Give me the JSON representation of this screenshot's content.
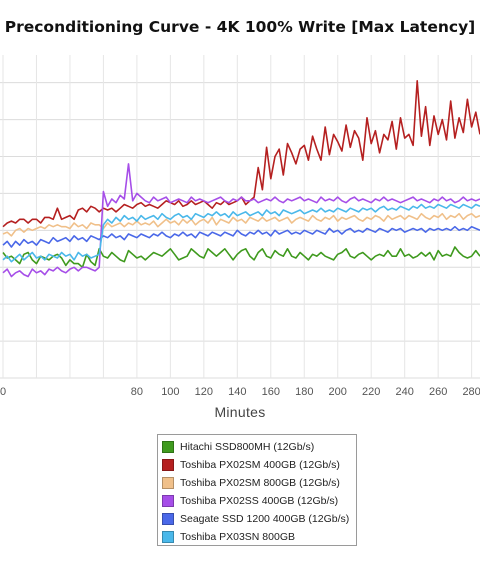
{
  "chart_data": {
    "type": "line",
    "title": "Preconditioning Curve - 4K 100% Write [Max Latency]",
    "xlabel": "Minutes",
    "ylabel": "",
    "xlim": [
      0,
      285
    ],
    "ylim": [
      0,
      8.75
    ],
    "x_ticks": [
      0,
      20,
      40,
      60,
      80,
      100,
      120,
      140,
      160,
      180,
      200,
      220,
      240,
      260,
      280
    ],
    "x_tick_labels": [
      "0",
      "",
      "",
      "",
      "80",
      "100",
      "120",
      "140",
      "160",
      "180",
      "200",
      "220",
      "240",
      "260",
      "280"
    ],
    "y_gridlines": [
      0,
      1,
      2,
      3,
      4,
      5,
      6,
      7,
      8
    ],
    "grid": true,
    "legend_position": "bottom",
    "sample_interval_min": 2.5,
    "series": [
      {
        "name": "Hitachi SSD800MH (12Gb/s)",
        "color": "#3f9a1e",
        "values": [
          3.4,
          3.25,
          3.3,
          3.2,
          3.1,
          3.35,
          3.4,
          3.2,
          3.1,
          3.3,
          3.25,
          3.2,
          3.3,
          3.35,
          3.25,
          3.05,
          3.2,
          3.1,
          3.1,
          3.0,
          3.35,
          3.15,
          3.05,
          3.5,
          3.3,
          3.25,
          3.4,
          3.3,
          3.2,
          3.15,
          3.45,
          3.35,
          3.25,
          3.3,
          3.2,
          3.3,
          3.4,
          3.35,
          3.3,
          3.4,
          3.5,
          3.35,
          3.2,
          3.25,
          3.3,
          3.5,
          3.4,
          3.3,
          3.25,
          3.5,
          3.4,
          3.3,
          3.4,
          3.5,
          3.35,
          3.2,
          3.35,
          3.45,
          3.5,
          3.3,
          3.2,
          3.4,
          3.5,
          3.3,
          3.25,
          3.45,
          3.35,
          3.3,
          3.5,
          3.3,
          3.25,
          3.4,
          3.3,
          3.2,
          3.35,
          3.3,
          3.4,
          3.3,
          3.25,
          3.2,
          3.35,
          3.4,
          3.5,
          3.3,
          3.25,
          3.35,
          3.4,
          3.3,
          3.2,
          3.3,
          3.35,
          3.3,
          3.45,
          3.3,
          3.3,
          3.5,
          3.3,
          3.35,
          3.25,
          3.3,
          3.4,
          3.3,
          3.4,
          3.2,
          3.45,
          3.3,
          3.35,
          3.3,
          3.55,
          3.4,
          3.3,
          3.25,
          3.3,
          3.45,
          3.3
        ]
      },
      {
        "name": "Toshiba PX02SM 400GB (12Gb/s)",
        "color": "#b52020",
        "values": [
          4.1,
          4.2,
          4.25,
          4.2,
          4.3,
          4.3,
          4.2,
          4.3,
          4.3,
          4.2,
          4.35,
          4.35,
          4.3,
          4.6,
          4.3,
          4.35,
          4.4,
          4.3,
          4.55,
          4.6,
          4.5,
          4.65,
          4.6,
          4.5,
          4.6,
          4.55,
          4.6,
          4.5,
          4.6,
          4.7,
          4.65,
          4.6,
          4.7,
          4.75,
          4.65,
          4.7,
          4.65,
          4.6,
          4.7,
          4.8,
          4.75,
          4.7,
          4.8,
          4.65,
          4.7,
          4.8,
          4.7,
          4.75,
          4.8,
          4.7,
          4.6,
          4.75,
          4.7,
          4.8,
          4.7,
          4.75,
          4.8,
          4.9,
          4.7,
          4.8,
          4.9,
          5.7,
          5.1,
          6.25,
          5.4,
          6.0,
          6.2,
          5.5,
          6.35,
          6.1,
          5.8,
          6.2,
          6.3,
          5.9,
          6.55,
          6.2,
          5.9,
          6.8,
          6.05,
          6.6,
          6.4,
          6.15,
          6.85,
          6.25,
          6.7,
          6.5,
          5.9,
          7.05,
          6.35,
          6.7,
          6.1,
          6.6,
          6.45,
          6.95,
          6.2,
          7.05,
          6.5,
          6.6,
          6.3,
          8.05,
          6.55,
          7.35,
          6.3,
          7.1,
          6.6,
          7.0,
          6.45,
          7.5,
          6.5,
          7.05,
          6.65,
          7.55,
          6.8,
          7.2,
          6.6
        ]
      },
      {
        "name": "Toshiba PX02SM 800GB (12Gb/s)",
        "color": "#f0c08a",
        "values": [
          3.9,
          3.95,
          3.85,
          4.0,
          4.05,
          3.95,
          4.05,
          4.0,
          4.05,
          4.1,
          4.05,
          4.15,
          4.1,
          4.15,
          4.1,
          4.1,
          4.05,
          4.2,
          4.1,
          4.15,
          4.05,
          4.2,
          4.15,
          4.15,
          4.05,
          4.2,
          4.1,
          4.15,
          4.2,
          4.1,
          4.2,
          4.15,
          4.25,
          4.15,
          4.2,
          4.15,
          4.25,
          4.1,
          4.2,
          4.3,
          4.2,
          4.25,
          4.15,
          4.3,
          4.2,
          4.3,
          4.15,
          4.25,
          4.3,
          4.2,
          4.35,
          4.15,
          4.3,
          4.25,
          4.2,
          4.35,
          4.25,
          4.3,
          4.2,
          4.35,
          4.3,
          4.25,
          4.35,
          4.25,
          4.3,
          4.35,
          4.25,
          4.3,
          4.35,
          4.2,
          4.3,
          4.35,
          4.3,
          4.25,
          4.4,
          4.3,
          4.25,
          4.35,
          4.3,
          4.4,
          4.25,
          4.35,
          4.3,
          4.35,
          4.4,
          4.3,
          4.25,
          4.35,
          4.3,
          4.4,
          4.35,
          4.25,
          4.4,
          4.3,
          4.35,
          4.4,
          4.3,
          4.4,
          4.35,
          4.3,
          4.45,
          4.35,
          4.3,
          4.4,
          4.35,
          4.45,
          4.3,
          4.4,
          4.35,
          4.45,
          4.3,
          4.4,
          4.45,
          4.35,
          4.4
        ]
      },
      {
        "name": "Toshiba PX02SS 400GB (12Gb/s)",
        "color": "#a64ee8",
        "values": [
          2.85,
          2.95,
          2.75,
          2.85,
          2.9,
          2.8,
          2.75,
          2.95,
          2.85,
          2.9,
          2.8,
          2.95,
          2.9,
          3.0,
          2.9,
          2.85,
          2.95,
          3.0,
          2.9,
          3.0,
          3.0,
          2.95,
          2.9,
          3.0,
          5.05,
          4.65,
          4.85,
          4.75,
          4.95,
          4.85,
          5.8,
          4.8,
          5.0,
          4.9,
          4.8,
          4.75,
          4.9,
          4.8,
          4.85,
          4.9,
          4.75,
          4.8,
          4.85,
          4.8,
          4.75,
          4.9,
          4.8,
          4.85,
          4.8,
          4.75,
          4.8,
          4.85,
          4.9,
          4.8,
          4.75,
          4.85,
          4.8,
          4.9,
          4.8,
          4.8,
          4.85,
          4.75,
          4.8,
          4.85,
          4.8,
          4.9,
          4.8,
          4.75,
          4.85,
          4.8,
          4.85,
          4.9,
          4.8,
          4.85,
          4.8,
          4.75,
          4.9,
          4.8,
          4.85,
          4.8,
          4.9,
          4.8,
          4.75,
          4.85,
          4.9,
          4.8,
          4.85,
          4.8,
          4.75,
          4.85,
          4.8,
          4.9,
          4.8,
          4.85,
          4.8,
          4.75,
          4.8,
          4.85,
          4.9,
          4.8,
          4.85,
          4.8,
          4.75,
          4.85,
          4.8,
          4.9,
          4.8,
          4.85,
          4.75,
          4.8,
          4.9,
          4.8,
          4.85,
          4.8,
          4.85
        ]
      },
      {
        "name": "Seagate SSD 1200 400GB (12Gb/s)",
        "color": "#4a68e8",
        "values": [
          3.6,
          3.7,
          3.55,
          3.7,
          3.6,
          3.75,
          3.65,
          3.7,
          3.6,
          3.75,
          3.7,
          3.65,
          3.8,
          3.7,
          3.75,
          3.8,
          3.7,
          3.85,
          3.75,
          3.8,
          3.7,
          3.85,
          3.8,
          3.75,
          3.85,
          3.8,
          3.9,
          3.8,
          3.85,
          3.75,
          3.9,
          3.85,
          3.8,
          3.9,
          3.85,
          3.8,
          3.9,
          3.85,
          3.95,
          3.85,
          3.8,
          3.9,
          3.85,
          3.95,
          3.85,
          3.9,
          3.8,
          3.95,
          3.9,
          3.85,
          3.95,
          3.9,
          3.85,
          3.95,
          3.9,
          3.85,
          4.0,
          3.9,
          3.85,
          3.95,
          3.9,
          4.0,
          3.9,
          3.95,
          3.85,
          4.0,
          3.9,
          3.95,
          4.0,
          3.9,
          3.95,
          3.9,
          4.0,
          3.95,
          3.9,
          4.0,
          3.95,
          3.9,
          4.05,
          3.95,
          4.0,
          3.9,
          4.0,
          4.05,
          3.95,
          4.0,
          3.95,
          4.05,
          4.0,
          3.95,
          4.05,
          4.0,
          3.95,
          4.05,
          4.0,
          4.05,
          3.95,
          4.0,
          4.05,
          4.0,
          4.05,
          3.95,
          4.05,
          4.0,
          4.05,
          4.0,
          4.05,
          4.0,
          4.1,
          4.0,
          4.05,
          4.0,
          4.1,
          4.05,
          4.0
        ]
      },
      {
        "name": "Toshiba PX03SN 800GB",
        "color": "#4ab8ea",
        "values": [
          3.2,
          3.3,
          3.15,
          3.25,
          3.35,
          3.2,
          3.3,
          3.4,
          3.25,
          3.3,
          3.2,
          3.35,
          3.3,
          3.25,
          3.4,
          3.3,
          3.35,
          3.2,
          3.4,
          3.3,
          3.35,
          3.25,
          3.3,
          3.35,
          4.15,
          4.3,
          4.2,
          4.35,
          4.25,
          4.4,
          4.3,
          4.35,
          4.25,
          4.4,
          4.3,
          4.35,
          4.4,
          4.3,
          4.45,
          4.35,
          4.3,
          4.4,
          4.45,
          4.35,
          4.4,
          4.3,
          4.45,
          4.4,
          4.35,
          4.45,
          4.4,
          4.5,
          4.4,
          4.45,
          4.35,
          4.5,
          4.4,
          4.45,
          4.5,
          4.4,
          4.45,
          4.5,
          4.4,
          4.55,
          4.45,
          4.5,
          4.4,
          4.55,
          4.5,
          4.45,
          4.5,
          4.55,
          4.45,
          4.5,
          4.55,
          4.5,
          4.6,
          4.5,
          4.55,
          4.5,
          4.6,
          4.55,
          4.5,
          4.6,
          4.55,
          4.5,
          4.6,
          4.55,
          4.6,
          4.5,
          4.6,
          4.65,
          4.55,
          4.6,
          4.55,
          4.65,
          4.6,
          4.55,
          4.65,
          4.6,
          4.7,
          4.6,
          4.65,
          4.6,
          4.7,
          4.65,
          4.6,
          4.7,
          4.65,
          4.6,
          4.7,
          4.65,
          4.6,
          4.7,
          4.65
        ]
      }
    ]
  }
}
